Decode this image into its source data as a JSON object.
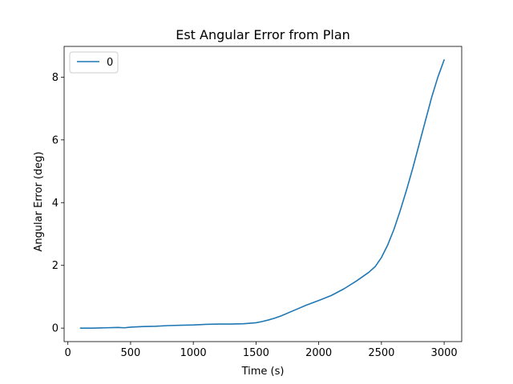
{
  "chart_data": {
    "type": "line",
    "title": "Est Angular Error from Plan",
    "xlabel": "Time (s)",
    "ylabel": "Angular Error (deg)",
    "xlim": [
      -30,
      3140
    ],
    "ylim": [
      -0.43,
      8.98
    ],
    "xticks": [
      0,
      500,
      1000,
      1500,
      2000,
      2500,
      3000
    ],
    "yticks": [
      0,
      2,
      4,
      6,
      8
    ],
    "grid": false,
    "legend": {
      "placement": "top-left",
      "entries": [
        "0"
      ]
    },
    "series": [
      {
        "name": "0",
        "color": "#1f77b4",
        "x": [
          100,
          200,
          300,
          400,
          450,
          500,
          600,
          700,
          800,
          900,
          1000,
          1100,
          1200,
          1300,
          1400,
          1500,
          1550,
          1600,
          1650,
          1700,
          1800,
          1900,
          2000,
          2100,
          2200,
          2300,
          2400,
          2450,
          2500,
          2550,
          2600,
          2650,
          2700,
          2750,
          2800,
          2850,
          2900,
          2950,
          3000
        ],
        "values": [
          0.0,
          0.0,
          0.01,
          0.02,
          0.01,
          0.03,
          0.05,
          0.06,
          0.08,
          0.09,
          0.1,
          0.12,
          0.13,
          0.13,
          0.14,
          0.17,
          0.21,
          0.26,
          0.32,
          0.39,
          0.56,
          0.73,
          0.88,
          1.04,
          1.25,
          1.5,
          1.78,
          1.96,
          2.25,
          2.65,
          3.15,
          3.75,
          4.4,
          5.1,
          5.85,
          6.6,
          7.35,
          8.0,
          8.55
        ]
      }
    ]
  }
}
